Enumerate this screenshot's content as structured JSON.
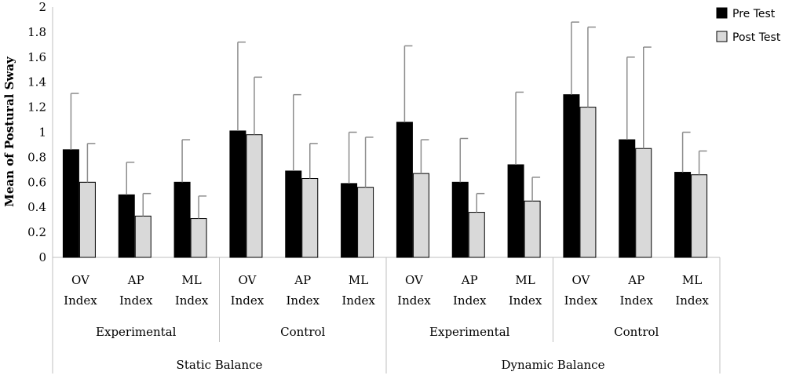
{
  "chart_data": {
    "type": "bar",
    "ylabel": "Mean of Postural Sway",
    "xlabel": "",
    "ylim": [
      0,
      2
    ],
    "yticks": [
      0,
      0.2,
      0.4,
      0.6,
      0.8,
      1,
      1.2,
      1.4,
      1.6,
      1.8,
      2
    ],
    "grid": false,
    "legend_position": "top-right",
    "colors": {
      "pre": "#000000",
      "post": "#d9d9d9",
      "error_bar": "#8c8c8c"
    },
    "categories": [
      [
        "OV",
        "Index"
      ],
      [
        "AP",
        "Index"
      ],
      [
        "ML",
        "Index"
      ],
      [
        "OV",
        "Index"
      ],
      [
        "AP",
        "Index"
      ],
      [
        "ML",
        "Index"
      ],
      [
        "OV",
        "Index"
      ],
      [
        "AP",
        "Index"
      ],
      [
        "ML",
        "Index"
      ],
      [
        "OV",
        "Index"
      ],
      [
        "AP",
        "Index"
      ],
      [
        "ML",
        "Index"
      ]
    ],
    "groups_level1": [
      {
        "label": "Experimental",
        "span": 3
      },
      {
        "label": "Control",
        "span": 3
      },
      {
        "label": "Experimental",
        "span": 3
      },
      {
        "label": "Control",
        "span": 3
      }
    ],
    "groups_level2": [
      {
        "label": "Static Balance",
        "span": 6
      },
      {
        "label": "Dynamic Balance",
        "span": 6
      }
    ],
    "series": [
      {
        "name": "Pre Test",
        "values": [
          0.86,
          0.5,
          0.6,
          1.01,
          0.69,
          0.59,
          1.08,
          0.6,
          0.74,
          1.3,
          0.94,
          0.68
        ],
        "error_upper": [
          1.31,
          0.76,
          0.94,
          1.72,
          1.3,
          1.0,
          1.69,
          0.95,
          1.32,
          1.88,
          1.6,
          1.0
        ]
      },
      {
        "name": "Post Test",
        "values": [
          0.6,
          0.33,
          0.31,
          0.98,
          0.63,
          0.56,
          0.67,
          0.36,
          0.45,
          1.2,
          0.87,
          0.66
        ],
        "error_upper": [
          0.91,
          0.51,
          0.49,
          1.44,
          0.91,
          0.96,
          0.94,
          0.51,
          0.64,
          1.84,
          1.68,
          0.85
        ]
      }
    ]
  }
}
